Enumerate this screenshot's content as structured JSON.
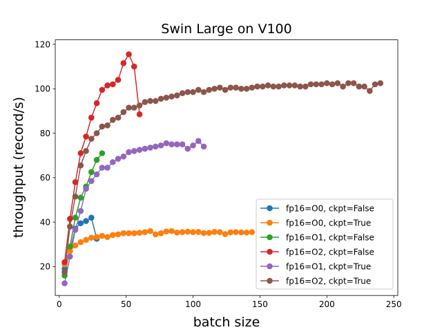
{
  "chart_data": {
    "type": "line",
    "title": "Swin Large on V100",
    "xlabel": "batch size",
    "ylabel": "throughput (record/s)",
    "xlim": [
      -3,
      253
    ],
    "ylim": [
      7,
      122
    ],
    "xticks": [
      0,
      50,
      100,
      150,
      200,
      250
    ],
    "yticks": [
      20,
      40,
      60,
      80,
      100,
      120
    ],
    "grid": false,
    "legend_position": "lower-right",
    "series": [
      {
        "name": "fp16=O0, ckpt=False",
        "color": "#1f77b4",
        "points": [
          [
            4,
            19
          ],
          [
            8,
            27
          ],
          [
            12,
            37
          ],
          [
            16,
            39.5
          ],
          [
            20,
            40.5
          ],
          [
            24,
            42
          ],
          [
            28,
            32.5
          ]
        ]
      },
      {
        "name": "fp16=O0, ckpt=True",
        "color": "#ff7f0e",
        "points": [
          [
            4,
            21
          ],
          [
            8,
            27
          ],
          [
            12,
            29.5
          ],
          [
            16,
            31
          ],
          [
            20,
            32
          ],
          [
            24,
            33
          ],
          [
            28,
            33.3
          ],
          [
            32,
            33.8
          ],
          [
            36,
            33.3
          ],
          [
            40,
            34.2
          ],
          [
            44,
            34.5
          ],
          [
            48,
            35
          ],
          [
            52,
            35
          ],
          [
            56,
            35
          ],
          [
            60,
            35.2
          ],
          [
            64,
            35.5
          ],
          [
            68,
            36
          ],
          [
            72,
            34.5
          ],
          [
            76,
            35
          ],
          [
            80,
            35.8
          ],
          [
            84,
            36
          ],
          [
            88,
            35.3
          ],
          [
            92,
            35.5
          ],
          [
            96,
            35.7
          ],
          [
            100,
            35.5
          ],
          [
            104,
            35.6
          ],
          [
            108,
            35.1
          ],
          [
            112,
            35.2
          ],
          [
            116,
            35.6
          ],
          [
            120,
            35.5
          ],
          [
            124,
            34.6
          ],
          [
            128,
            35.4
          ],
          [
            132,
            35.5
          ],
          [
            136,
            35.4
          ],
          [
            140,
            35.3
          ],
          [
            144,
            35.5
          ]
        ]
      },
      {
        "name": "fp16=O1, ckpt=False",
        "color": "#2ca02c",
        "points": [
          [
            4,
            16
          ],
          [
            8,
            29
          ],
          [
            12,
            42
          ],
          [
            16,
            51
          ],
          [
            20,
            56
          ],
          [
            24,
            62.5
          ],
          [
            28,
            68
          ],
          [
            32,
            71
          ]
        ]
      },
      {
        "name": "fp16=O2, ckpt=False",
        "color": "#d62728",
        "points": [
          [
            4,
            22
          ],
          [
            8,
            41.5
          ],
          [
            12,
            58
          ],
          [
            16,
            71
          ],
          [
            20,
            78.5
          ],
          [
            24,
            87
          ],
          [
            28,
            93.5
          ],
          [
            32,
            99.5
          ],
          [
            36,
            101.5
          ],
          [
            40,
            102
          ],
          [
            44,
            104
          ],
          [
            48,
            111.5
          ],
          [
            52,
            115.5
          ],
          [
            56,
            110
          ],
          [
            60,
            88.5
          ]
        ]
      },
      {
        "name": "fp16=O1, ckpt=True",
        "color": "#9467bd",
        "points": [
          [
            4,
            12.5
          ],
          [
            8,
            24.5
          ],
          [
            12,
            36.5
          ],
          [
            16,
            45
          ],
          [
            20,
            55
          ],
          [
            24,
            58.5
          ],
          [
            28,
            61.5
          ],
          [
            32,
            64.5
          ],
          [
            36,
            64.5
          ],
          [
            40,
            67
          ],
          [
            44,
            68.5
          ],
          [
            48,
            69.5
          ],
          [
            52,
            71.5
          ],
          [
            56,
            72
          ],
          [
            60,
            72.5
          ],
          [
            64,
            73
          ],
          [
            68,
            73.5
          ],
          [
            72,
            74
          ],
          [
            76,
            74.5
          ],
          [
            80,
            75.5
          ],
          [
            84,
            75
          ],
          [
            88,
            75
          ],
          [
            92,
            75
          ],
          [
            96,
            73
          ],
          [
            100,
            74.5
          ],
          [
            104,
            76.5
          ],
          [
            108,
            74
          ]
        ]
      },
      {
        "name": "fp16=O2, ckpt=True",
        "color": "#8c564b",
        "points": [
          [
            4,
            17.5
          ],
          [
            8,
            38
          ],
          [
            12,
            51.5
          ],
          [
            16,
            65.5
          ],
          [
            20,
            72
          ],
          [
            24,
            77.5
          ],
          [
            28,
            80
          ],
          [
            32,
            83
          ],
          [
            36,
            83.5
          ],
          [
            40,
            86
          ],
          [
            44,
            87
          ],
          [
            48,
            89.5
          ],
          [
            52,
            91.5
          ],
          [
            56,
            91.5
          ],
          [
            60,
            92.5
          ],
          [
            64,
            94
          ],
          [
            68,
            94.5
          ],
          [
            72,
            94.5
          ],
          [
            76,
            95.5
          ],
          [
            80,
            96
          ],
          [
            84,
            96.5
          ],
          [
            88,
            97
          ],
          [
            92,
            98
          ],
          [
            96,
            98.5
          ],
          [
            100,
            98.5
          ],
          [
            104,
            99.5
          ],
          [
            108,
            98.5
          ],
          [
            112,
            99.5
          ],
          [
            116,
            100
          ],
          [
            120,
            100.5
          ],
          [
            124,
            99.5
          ],
          [
            128,
            100.5
          ],
          [
            132,
            100.5
          ],
          [
            136,
            100
          ],
          [
            140,
            100
          ],
          [
            144,
            100.5
          ],
          [
            148,
            101
          ],
          [
            152,
            101
          ],
          [
            156,
            101.5
          ],
          [
            160,
            101
          ],
          [
            164,
            101
          ],
          [
            168,
            101.5
          ],
          [
            172,
            101.5
          ],
          [
            176,
            101.5
          ],
          [
            180,
            101
          ],
          [
            184,
            101
          ],
          [
            188,
            102
          ],
          [
            192,
            102
          ],
          [
            196,
            102
          ],
          [
            200,
            102.5
          ],
          [
            204,
            102
          ],
          [
            208,
            102.5
          ],
          [
            212,
            101
          ],
          [
            216,
            102.5
          ],
          [
            220,
            102.5
          ],
          [
            224,
            101
          ],
          [
            228,
            101
          ],
          [
            232,
            99
          ],
          [
            236,
            102
          ],
          [
            240,
            102.5
          ]
        ]
      }
    ]
  }
}
